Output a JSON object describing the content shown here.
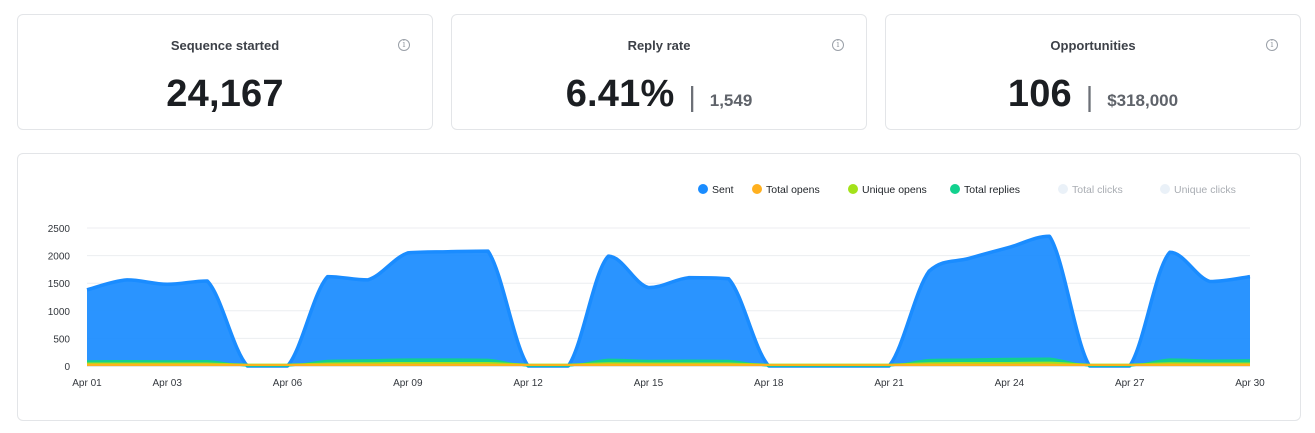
{
  "cards": [
    {
      "title": "Sequence started",
      "value": "24,167",
      "secondary": ""
    },
    {
      "title": "Reply rate",
      "value": "6.41%",
      "secondary": "1,549"
    },
    {
      "title": "Opportunities",
      "value": "106",
      "secondary": "$318,000"
    }
  ],
  "info_icon_glyph": "i",
  "separator": "|",
  "legend": [
    {
      "label": "Sent",
      "color": "#1a8cff",
      "enabled": true
    },
    {
      "label": "Total opens",
      "color": "#ffb01f",
      "enabled": true
    },
    {
      "label": "Unique opens",
      "color": "#a3e21a",
      "enabled": true
    },
    {
      "label": "Total replies",
      "color": "#12d18e",
      "enabled": true
    },
    {
      "label": "Total clicks",
      "color": "#eaf1f8",
      "enabled": false
    },
    {
      "label": "Unique clicks",
      "color": "#eaf1f8",
      "enabled": false
    }
  ],
  "chart_data": {
    "type": "area",
    "x": [
      "Apr 01",
      "Apr 02",
      "Apr 03",
      "Apr 04",
      "Apr 05",
      "Apr 06",
      "Apr 07",
      "Apr 08",
      "Apr 09",
      "Apr 10",
      "Apr 11",
      "Apr 12",
      "Apr 13",
      "Apr 14",
      "Apr 15",
      "Apr 16",
      "Apr 17",
      "Apr 18",
      "Apr 19",
      "Apr 20",
      "Apr 21",
      "Apr 22",
      "Apr 23",
      "Apr 24",
      "Apr 25",
      "Apr 26",
      "Apr 27",
      "Apr 28",
      "Apr 29",
      "Apr 30"
    ],
    "x_tick_labels": [
      "Apr 01",
      "Apr 03",
      "Apr 06",
      "Apr 09",
      "Apr 12",
      "Apr 15",
      "Apr 18",
      "Apr 21",
      "Apr 24",
      "Apr 27",
      "Apr 30"
    ],
    "y_ticks": [
      0,
      500,
      1000,
      1500,
      2000,
      2500
    ],
    "ylim": [
      0,
      2500
    ],
    "grid": true,
    "legend_position": "top-right",
    "series": [
      {
        "name": "Sent",
        "color": "#1a8cff",
        "values": [
          1380,
          1560,
          1480,
          1540,
          0,
          0,
          1620,
          1560,
          2050,
          2070,
          2080,
          0,
          0,
          1990,
          1420,
          1600,
          1580,
          0,
          0,
          0,
          0,
          1720,
          1950,
          2150,
          2350,
          0,
          0,
          2060,
          1530,
          1620
        ]
      },
      {
        "name": "Total replies",
        "color": "#12d18e",
        "values": [
          90,
          95,
          90,
          95,
          0,
          0,
          100,
          110,
          125,
          125,
          120,
          0,
          0,
          120,
          100,
          105,
          100,
          0,
          0,
          0,
          0,
          115,
          125,
          135,
          140,
          0,
          0,
          125,
          105,
          110
        ]
      },
      {
        "name": "Unique opens",
        "color": "#a3e21a",
        "values": [
          50,
          50,
          50,
          50,
          30,
          30,
          50,
          55,
          60,
          60,
          60,
          30,
          30,
          55,
          50,
          50,
          50,
          30,
          30,
          30,
          30,
          55,
          60,
          60,
          65,
          30,
          30,
          55,
          50,
          50
        ]
      },
      {
        "name": "Total opens",
        "color": "#ffb01f",
        "values": [
          30,
          30,
          30,
          30,
          20,
          20,
          30,
          30,
          30,
          30,
          30,
          20,
          20,
          30,
          30,
          30,
          30,
          20,
          20,
          20,
          20,
          30,
          30,
          30,
          30,
          20,
          20,
          30,
          30,
          30
        ]
      }
    ]
  }
}
